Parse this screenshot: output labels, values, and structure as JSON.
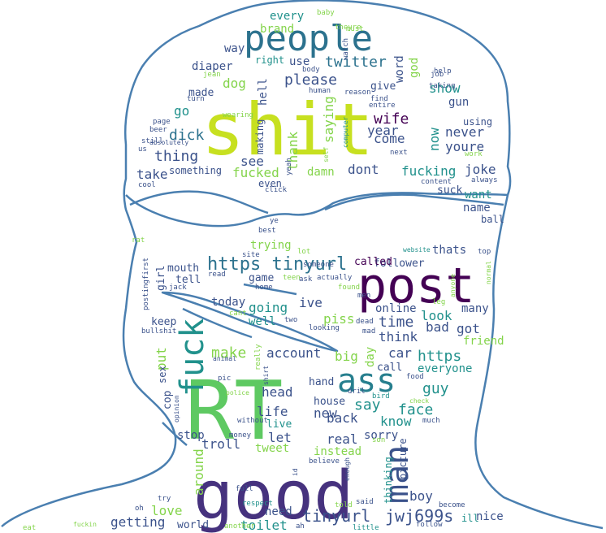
{
  "image": {
    "type": "word-cloud",
    "mask_shape": "head-silhouette-with-sunglasses",
    "background": "#ffffff",
    "outline_color": "#4a7fb0",
    "palette": [
      "#440154",
      "#3b528b",
      "#21918c",
      "#5ec962",
      "#fde725"
    ]
  },
  "words": [
    {
      "text": "shit",
      "color": "#c7e020",
      "size": 88
    },
    {
      "text": "RT",
      "color": "#5ec962",
      "size": 100
    },
    {
      "text": "good",
      "color": "#46327e",
      "size": 82
    },
    {
      "text": "post",
      "color": "#440154",
      "size": 60
    },
    {
      "text": "people",
      "color": "#2c728e",
      "size": 44
    },
    {
      "text": "ass",
      "color": "#277f8e",
      "size": 40
    },
    {
      "text": "fuck",
      "color": "#21918c",
      "size": 40,
      "vertical": true
    },
    {
      "text": "man",
      "color": "#3b528b",
      "size": 40,
      "vertical": true
    },
    {
      "text": "https tinyurl",
      "color": "#2c728e",
      "size": 22
    },
    {
      "text": "tinyurl",
      "color": "#3b528b",
      "size": 20
    },
    {
      "text": "jwj699s",
      "color": "#3b528b",
      "size": 20
    },
    {
      "text": "twitter",
      "color": "#2c728e",
      "size": 18
    },
    {
      "text": "please",
      "color": "#3b528b",
      "size": 18
    },
    {
      "text": "dick",
      "color": "#2c728e",
      "size": 18
    },
    {
      "text": "thing",
      "color": "#3b528b",
      "size": 18
    },
    {
      "text": "wife",
      "color": "#440154",
      "size": 18
    },
    {
      "text": "year",
      "color": "#3b528b",
      "size": 16
    },
    {
      "text": "fucking",
      "color": "#21918c",
      "size": 16
    },
    {
      "text": "fucked",
      "color": "#84d44b",
      "size": 16
    },
    {
      "text": "dont",
      "color": "#3b528b",
      "size": 16
    },
    {
      "text": "damn",
      "color": "#84d44b",
      "size": 14
    },
    {
      "text": "joke",
      "color": "#3b528b",
      "size": 16
    },
    {
      "text": "want",
      "color": "#21918c",
      "size": 14
    },
    {
      "text": "name",
      "color": "#3b528b",
      "size": 14
    },
    {
      "text": "show",
      "color": "#21918c",
      "size": 16
    },
    {
      "text": "never",
      "color": "#3b528b",
      "size": 16
    },
    {
      "text": "youre",
      "color": "#3b528b",
      "size": 16
    },
    {
      "text": "come",
      "color": "#3b528b",
      "size": 16
    },
    {
      "text": "give",
      "color": "#3b528b",
      "size": 13
    },
    {
      "text": "take",
      "color": "#3b528b",
      "size": 16
    },
    {
      "text": "see",
      "color": "#3b528b",
      "size": 16
    },
    {
      "text": "thank",
      "color": "#84d44b",
      "size": 16,
      "vertical": true
    },
    {
      "text": "saying",
      "color": "#84d44b",
      "size": 16,
      "vertical": true
    },
    {
      "text": "now",
      "color": "#21918c",
      "size": 16,
      "vertical": true
    },
    {
      "text": "god",
      "color": "#84d44b",
      "size": 14,
      "vertical": true
    },
    {
      "text": "word",
      "color": "#3b528b",
      "size": 14,
      "vertical": true
    },
    {
      "text": "hell",
      "color": "#3b528b",
      "size": 14,
      "vertical": true
    },
    {
      "text": "making",
      "color": "#3b528b",
      "size": 12,
      "vertical": true
    },
    {
      "text": "dog",
      "color": "#84d44b",
      "size": 16
    },
    {
      "text": "go",
      "color": "#21918c",
      "size": 16
    },
    {
      "text": "made",
      "color": "#3b528b",
      "size": 13
    },
    {
      "text": "diaper",
      "color": "#3b528b",
      "size": 14
    },
    {
      "text": "way",
      "color": "#3b528b",
      "size": 14
    },
    {
      "text": "brand",
      "color": "#84d44b",
      "size": 14
    },
    {
      "text": "every",
      "color": "#21918c",
      "size": 14
    },
    {
      "text": "right",
      "color": "#21918c",
      "size": 12
    },
    {
      "text": "use",
      "color": "#3b528b",
      "size": 14
    },
    {
      "text": "something",
      "color": "#3b528b",
      "size": 12
    },
    {
      "text": "suck",
      "color": "#3b528b",
      "size": 13
    },
    {
      "text": "gun",
      "color": "#3b528b",
      "size": 14
    },
    {
      "text": "using",
      "color": "#3b528b",
      "size": 12
    },
    {
      "text": "ball",
      "color": "#3b528b",
      "size": 12
    },
    {
      "text": "thats",
      "color": "#3b528b",
      "size": 14
    },
    {
      "text": "follower",
      "color": "#3b528b",
      "size": 13
    },
    {
      "text": "called",
      "color": "#440154",
      "size": 13
    },
    {
      "text": "trying",
      "color": "#84d44b",
      "size": 14
    },
    {
      "text": "mouth",
      "color": "#3b528b",
      "size": 13
    },
    {
      "text": "tell",
      "color": "#3b528b",
      "size": 13
    },
    {
      "text": "girl",
      "color": "#3b528b",
      "size": 13,
      "vertical": true
    },
    {
      "text": "game",
      "color": "#3b528b",
      "size": 13
    },
    {
      "text": "going",
      "color": "#21918c",
      "size": 16
    },
    {
      "text": "ive",
      "color": "#3b528b",
      "size": 16
    },
    {
      "text": "today",
      "color": "#3b528b",
      "size": 14
    },
    {
      "text": "well",
      "color": "#21918c",
      "size": 14
    },
    {
      "text": "piss",
      "color": "#84d44b",
      "size": 16
    },
    {
      "text": "online",
      "color": "#3b528b",
      "size": 14
    },
    {
      "text": "look",
      "color": "#21918c",
      "size": 16
    },
    {
      "text": "many",
      "color": "#3b528b",
      "size": 14
    },
    {
      "text": "time",
      "color": "#3b528b",
      "size": 18
    },
    {
      "text": "bad",
      "color": "#3b528b",
      "size": 16
    },
    {
      "text": "got",
      "color": "#3b528b",
      "size": 16
    },
    {
      "text": "think",
      "color": "#3b528b",
      "size": 16
    },
    {
      "text": "friend",
      "color": "#84d44b",
      "size": 14
    },
    {
      "text": "keep",
      "color": "#3b528b",
      "size": 13
    },
    {
      "text": "put",
      "color": "#84d44b",
      "size": 16,
      "vertical": true
    },
    {
      "text": "make",
      "color": "#84d44b",
      "size": 18
    },
    {
      "text": "account",
      "color": "#3b528b",
      "size": 16
    },
    {
      "text": "big",
      "color": "#84d44b",
      "size": 16
    },
    {
      "text": "day",
      "color": "#84d44b",
      "size": 14,
      "vertical": true
    },
    {
      "text": "car",
      "color": "#3b528b",
      "size": 16
    },
    {
      "text": "https",
      "color": "#21918c",
      "size": 18
    },
    {
      "text": "call",
      "color": "#3b528b",
      "size": 13
    },
    {
      "text": "everyone",
      "color": "#21918c",
      "size": 14
    },
    {
      "text": "guy",
      "color": "#21918c",
      "size": 18
    },
    {
      "text": "head",
      "color": "#3b528b",
      "size": 16
    },
    {
      "text": "hand",
      "color": "#3b528b",
      "size": 13
    },
    {
      "text": "house",
      "color": "#3b528b",
      "size": 13
    },
    {
      "text": "say",
      "color": "#21918c",
      "size": 18
    },
    {
      "text": "face",
      "color": "#21918c",
      "size": 18
    },
    {
      "text": "life",
      "color": "#3b528b",
      "size": 16
    },
    {
      "text": "new",
      "color": "#3b528b",
      "size": 16
    },
    {
      "text": "know",
      "color": "#21918c",
      "size": 16
    },
    {
      "text": "live",
      "color": "#21918c",
      "size": 13
    },
    {
      "text": "let",
      "color": "#3b528b",
      "size": 16
    },
    {
      "text": "back",
      "color": "#3b528b",
      "size": 16
    },
    {
      "text": "real",
      "color": "#3b528b",
      "size": 16
    },
    {
      "text": "sorry",
      "color": "#3b528b",
      "size": 14
    },
    {
      "text": "tweet",
      "color": "#84d44b",
      "size": 14
    },
    {
      "text": "instead",
      "color": "#84d44b",
      "size": 14
    },
    {
      "text": "picture",
      "color": "#3b528b",
      "size": 12,
      "vertical": true
    },
    {
      "text": "thinking",
      "color": "#21918c",
      "size": 12,
      "vertical": true
    },
    {
      "text": "stop",
      "color": "#3b528b",
      "size": 14
    },
    {
      "text": "troll",
      "color": "#3b528b",
      "size": 16
    },
    {
      "text": "around",
      "color": "#84d44b",
      "size": 16,
      "vertical": true
    },
    {
      "text": "cop",
      "color": "#3b528b",
      "size": 13,
      "vertical": true
    },
    {
      "text": "sex",
      "color": "#3b528b",
      "size": 12,
      "vertical": true
    },
    {
      "text": "love",
      "color": "#84d44b",
      "size": 16
    },
    {
      "text": "getting",
      "color": "#3b528b",
      "size": 16
    },
    {
      "text": "world",
      "color": "#3b528b",
      "size": 13
    },
    {
      "text": "toilet",
      "color": "#21918c",
      "size": 16
    },
    {
      "text": "need",
      "color": "#3b528b",
      "size": 14
    },
    {
      "text": "boy",
      "color": "#3b528b",
      "size": 16
    },
    {
      "text": "nice",
      "color": "#3b528b",
      "size": 14
    },
    {
      "text": "ill",
      "color": "#21918c",
      "size": 12
    },
    {
      "text": "baby",
      "color": "#84d44b",
      "size": 9
    },
    {
      "text": "theyre",
      "color": "#84d44b",
      "size": 9
    },
    {
      "text": "must",
      "color": "#84d44b",
      "size": 9
    },
    {
      "text": "watch",
      "color": "#3b528b",
      "size": 9,
      "vertical": true
    },
    {
      "text": "body",
      "color": "#3b528b",
      "size": 9
    },
    {
      "text": "human",
      "color": "#3b528b",
      "size": 9
    },
    {
      "text": "reason",
      "color": "#3b528b",
      "size": 9
    },
    {
      "text": "find",
      "color": "#3b528b",
      "size": 9
    },
    {
      "text": "entire",
      "color": "#3b528b",
      "size": 9
    },
    {
      "text": "help",
      "color": "#3b528b",
      "size": 9
    },
    {
      "text": "job",
      "color": "#3b528b",
      "size": 9
    },
    {
      "text": "taking",
      "color": "#3b528b",
      "size": 9
    },
    {
      "text": "jean",
      "color": "#84d44b",
      "size": 9
    },
    {
      "text": "turn",
      "color": "#3b528b",
      "size": 9
    },
    {
      "text": "wearing",
      "color": "#84d44b",
      "size": 9
    },
    {
      "text": "page",
      "color": "#3b528b",
      "size": 9
    },
    {
      "text": "beer",
      "color": "#3b528b",
      "size": 9
    },
    {
      "text": "still",
      "color": "#3b528b",
      "size": 9
    },
    {
      "text": "absolutely",
      "color": "#3b528b",
      "size": 8
    },
    {
      "text": "us",
      "color": "#3b528b",
      "size": 9
    },
    {
      "text": "cool",
      "color": "#3b528b",
      "size": 9
    },
    {
      "text": "computer",
      "color": "#21918c",
      "size": 8,
      "vertical": true
    },
    {
      "text": "self",
      "color": "#84d44b",
      "size": 8,
      "vertical": true
    },
    {
      "text": "next",
      "color": "#3b528b",
      "size": 9
    },
    {
      "text": "work",
      "color": "#84d44b",
      "size": 9
    },
    {
      "text": "content",
      "color": "#3b528b",
      "size": 9
    },
    {
      "text": "always",
      "color": "#3b528b",
      "size": 9
    },
    {
      "text": "yeah",
      "color": "#3b528b",
      "size": 9,
      "vertical": true
    },
    {
      "text": "even",
      "color": "#3b528b",
      "size": 12
    },
    {
      "text": "click",
      "color": "#3b528b",
      "size": 9
    },
    {
      "text": "ye",
      "color": "#3b528b",
      "size": 9
    },
    {
      "text": "best",
      "color": "#3b528b",
      "size": 9
    },
    {
      "text": "rat",
      "color": "#84d44b",
      "size": 9
    },
    {
      "text": "site",
      "color": "#3b528b",
      "size": 9
    },
    {
      "text": "lot",
      "color": "#84d44b",
      "size": 9
    },
    {
      "text": "website",
      "color": "#21918c",
      "size": 8
    },
    {
      "text": "top",
      "color": "#3b528b",
      "size": 9
    },
    {
      "text": "normal",
      "color": "#84d44b",
      "size": 8,
      "vertical": true
    },
    {
      "text": "first",
      "color": "#3b528b",
      "size": 9,
      "vertical": true
    },
    {
      "text": "jack",
      "color": "#3b528b",
      "size": 9
    },
    {
      "text": "read",
      "color": "#3b528b",
      "size": 9
    },
    {
      "text": "teen",
      "color": "#84d44b",
      "size": 9
    },
    {
      "text": "ask",
      "color": "#3b528b",
      "size": 9
    },
    {
      "text": "actually",
      "color": "#3b528b",
      "size": 9
    },
    {
      "text": "home",
      "color": "#3b528b",
      "size": 9
    },
    {
      "text": "found",
      "color": "#84d44b",
      "size": 9
    },
    {
      "text": "men",
      "color": "#3b528b",
      "size": 9
    },
    {
      "text": "anyone",
      "color": "#84d44b",
      "size": 8,
      "vertical": true
    },
    {
      "text": "leg",
      "color": "#84d44b",
      "size": 9
    },
    {
      "text": "posting",
      "color": "#3b528b",
      "size": 9,
      "vertical": true
    },
    {
      "text": "cant",
      "color": "#84d44b",
      "size": 9
    },
    {
      "text": "two",
      "color": "#3b528b",
      "size": 9
    },
    {
      "text": "looking",
      "color": "#3b528b",
      "size": 9
    },
    {
      "text": "dead",
      "color": "#3b528b",
      "size": 9
    },
    {
      "text": "mad",
      "color": "#3b528b",
      "size": 9
    },
    {
      "text": "bullshit",
      "color": "#3b528b",
      "size": 9
    },
    {
      "text": "animal",
      "color": "#3b528b",
      "size": 8
    },
    {
      "text": "really",
      "color": "#84d44b",
      "size": 9,
      "vertical": true
    },
    {
      "text": "pic",
      "color": "#3b528b",
      "size": 9
    },
    {
      "text": "shirt",
      "color": "#3b528b",
      "size": 8,
      "vertical": true
    },
    {
      "text": "dril",
      "color": "#3b528b",
      "size": 9
    },
    {
      "text": "food",
      "color": "#3b528b",
      "size": 9
    },
    {
      "text": "police",
      "color": "#84d44b",
      "size": 8
    },
    {
      "text": "bird",
      "color": "#21918c",
      "size": 9
    },
    {
      "text": "check",
      "color": "#84d44b",
      "size": 8
    },
    {
      "text": "without",
      "color": "#3b528b",
      "size": 9
    },
    {
      "text": "opinion",
      "color": "#3b528b",
      "size": 8,
      "vertical": true
    },
    {
      "text": "much",
      "color": "#3b528b",
      "size": 9
    },
    {
      "text": "money",
      "color": "#3b528b",
      "size": 9
    },
    {
      "text": "son",
      "color": "#84d44b",
      "size": 9
    },
    {
      "text": "believe",
      "color": "#3b528b",
      "size": 9
    },
    {
      "text": "id",
      "color": "#3b528b",
      "size": 8,
      "vertical": true
    },
    {
      "text": "full",
      "color": "#3b528b",
      "size": 9
    },
    {
      "text": "enough",
      "color": "#3b528b",
      "size": 8,
      "vertical": true
    },
    {
      "text": "oh",
      "color": "#3b528b",
      "size": 9
    },
    {
      "text": "try",
      "color": "#3b528b",
      "size": 9
    },
    {
      "text": "respect",
      "color": "#21918c",
      "size": 9
    },
    {
      "text": "said",
      "color": "#3b528b",
      "size": 9
    },
    {
      "text": "told",
      "color": "#84d44b",
      "size": 9
    },
    {
      "text": "become",
      "color": "#3b528b",
      "size": 9
    },
    {
      "text": "eat",
      "color": "#84d44b",
      "size": 9
    },
    {
      "text": "fuckin",
      "color": "#84d44b",
      "size": 8
    },
    {
      "text": "another",
      "color": "#84d44b",
      "size": 9
    },
    {
      "text": "ah",
      "color": "#3b528b",
      "size": 9
    },
    {
      "text": "little",
      "color": "#21918c",
      "size": 9
    },
    {
      "text": "follow",
      "color": "#3b528b",
      "size": 9
    },
    {
      "text": "someone",
      "color": "#3b528b",
      "size": 9
    }
  ]
}
